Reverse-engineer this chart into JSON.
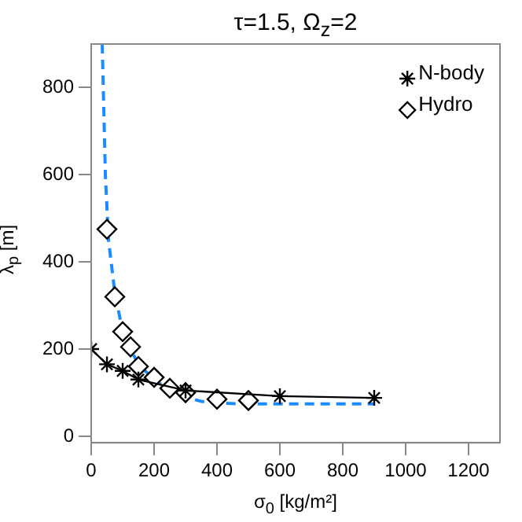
{
  "chart_data": {
    "type": "line",
    "title": "τ=1.5, Ω$_{z}$=2",
    "xlabel": "σ$_{0}$ [kg/m²]",
    "ylabel": "λ$_{p}$ [m]",
    "xlim": [
      0,
      1300
    ],
    "ylim": [
      -15,
      900
    ],
    "xticks": [
      0,
      200,
      400,
      600,
      800,
      1000,
      1200
    ],
    "yticks": [
      0,
      200,
      400,
      600,
      800
    ],
    "grid": false,
    "legend": "top right",
    "series": [
      {
        "name": "N-body",
        "color": "#000000",
        "marker": "cross",
        "line_style": "solid",
        "x": [
          0,
          50,
          100,
          150,
          300,
          600,
          900
        ],
        "values": [
          200,
          165,
          150,
          130,
          105,
          92,
          88
        ]
      },
      {
        "name": "Hydro",
        "type": "scatter",
        "color": "#000000",
        "marker": "diamond",
        "x": [
          50,
          75,
          100,
          125,
          150,
          200,
          250,
          300,
          400,
          500
        ],
        "values": [
          475,
          320,
          240,
          205,
          160,
          135,
          110,
          100,
          85,
          82
        ]
      },
      {
        "color": "#1a8cff",
        "marker": "none",
        "line_style": "dashed",
        "x": [
          35,
          45,
          55,
          75,
          100,
          125,
          150,
          200,
          250,
          300,
          350,
          400,
          500,
          700,
          900
        ],
        "values": [
          900,
          600,
          450,
          330,
          240,
          200,
          165,
          130,
          105,
          90,
          80,
          76,
          74,
          74,
          74
        ]
      }
    ]
  }
}
